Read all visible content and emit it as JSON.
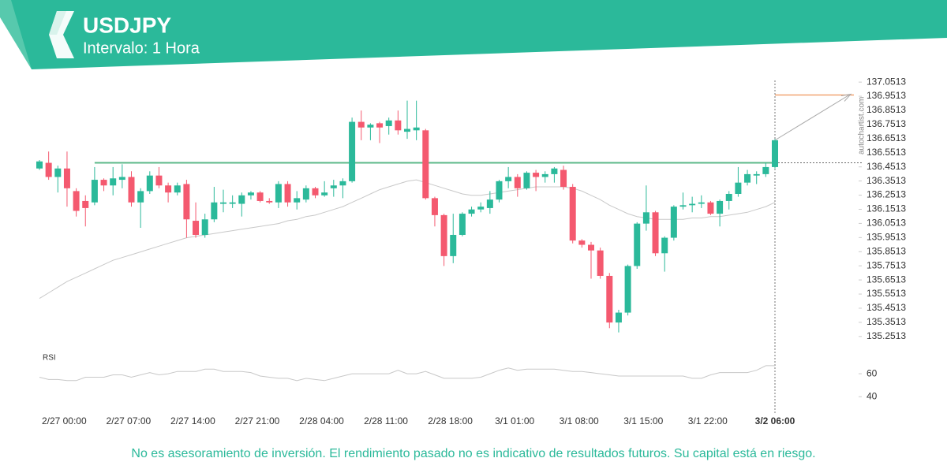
{
  "chart_data": {
    "type": "candlestick",
    "title": "USDJPY",
    "subtitle": "Intervalo: 1 Hora",
    "watermark": "autochartist.com",
    "disclaimer": "No es asesoramiento de inversión. El rendimiento pasado no es indicativo de resultados futuros. Su capital está en riesgo.",
    "categories": [
      null,
      null,
      "2/27 00:00",
      null,
      null,
      null,
      null,
      null,
      null,
      "2/27 07:00",
      null,
      null,
      null,
      null,
      null,
      null,
      "2/27 14:00",
      null,
      null,
      null,
      null,
      null,
      null,
      "2/27 21:00",
      null,
      null,
      null,
      null,
      null,
      null,
      "2/28 04:00",
      null,
      null,
      null,
      null,
      null,
      null,
      "2/28 11:00",
      null,
      null,
      null,
      null,
      null,
      null,
      "2/28 18:00",
      null,
      null,
      null,
      null,
      null,
      null,
      "3/1 01:00",
      null,
      null,
      null,
      null,
      null,
      null,
      "3/1 08:00",
      null,
      null,
      null,
      null,
      null,
      null,
      "3/1 15:00",
      null,
      null,
      null,
      null,
      null,
      null,
      "3/1 22:00",
      null,
      null,
      null,
      null,
      null,
      null,
      null,
      "3/2 06:00"
    ],
    "open": [
      136.44,
      136.48,
      136.38,
      136.44,
      136.28,
      136.21,
      136.2,
      136.36,
      136.32,
      136.36,
      136.38,
      136.2,
      136.28,
      136.39,
      136.32,
      136.27,
      136.33,
      136.07,
      135.97,
      136.08,
      136.19,
      136.19,
      136.19,
      136.25,
      136.27,
      136.21,
      136.2,
      136.33,
      136.2,
      136.22,
      136.3,
      136.25,
      136.3,
      136.32,
      136.35,
      136.77,
      136.73,
      136.76,
      136.74,
      136.78,
      136.7,
      136.71,
      136.71,
      136.23,
      136.11,
      135.82,
      135.97,
      136.12,
      136.15,
      136.16,
      136.22,
      136.35,
      136.38,
      136.3,
      136.41,
      136.38,
      136.4,
      136.43,
      136.31,
      135.93,
      135.9,
      135.86,
      135.68,
      135.35,
      135.42,
      135.75,
      136.05,
      136.13,
      135.84,
      135.95,
      136.17,
      136.18,
      136.19,
      136.2,
      136.12,
      136.21,
      136.26,
      136.34,
      136.39,
      136.4,
      136.45
    ],
    "high": [
      136.5,
      136.56,
      136.46,
      136.56,
      136.3,
      136.25,
      136.45,
      136.37,
      136.45,
      136.47,
      136.42,
      136.3,
      136.42,
      136.45,
      136.34,
      136.34,
      136.36,
      136.2,
      136.12,
      136.31,
      136.29,
      136.25,
      136.27,
      136.28,
      136.28,
      136.23,
      136.35,
      136.35,
      136.28,
      136.32,
      136.31,
      136.35,
      136.36,
      136.37,
      136.8,
      136.85,
      136.76,
      136.77,
      136.8,
      136.85,
      136.92,
      136.92,
      136.72,
      136.24,
      136.12,
      136.12,
      136.13,
      136.17,
      136.2,
      136.28,
      136.36,
      136.45,
      136.4,
      136.42,
      136.43,
      136.42,
      136.45,
      136.46,
      136.33,
      135.94,
      135.92,
      135.88,
      135.7,
      135.44,
      135.76,
      136.06,
      136.32,
      136.14,
      135.96,
      136.18,
      136.27,
      136.24,
      136.25,
      136.21,
      136.22,
      136.28,
      136.45,
      136.43,
      136.42,
      136.48,
      136.65
    ],
    "low": [
      136.43,
      136.36,
      136.27,
      136.17,
      136.1,
      136.03,
      136.18,
      136.28,
      136.25,
      136.3,
      136.17,
      136.02,
      136.26,
      136.3,
      136.2,
      136.25,
      135.95,
      135.95,
      135.95,
      136.06,
      136.13,
      136.16,
      136.1,
      136.22,
      136.2,
      136.19,
      136.16,
      136.17,
      136.15,
      136.2,
      136.23,
      136.24,
      136.24,
      136.23,
      136.34,
      136.64,
      136.64,
      136.62,
      136.68,
      136.68,
      136.65,
      136.64,
      136.22,
      136.03,
      135.75,
      135.77,
      135.96,
      136.1,
      136.13,
      136.12,
      136.2,
      136.3,
      136.24,
      136.29,
      136.28,
      136.34,
      136.34,
      136.29,
      135.91,
      135.88,
      135.66,
      135.66,
      135.31,
      135.28,
      135.4,
      135.73,
      136.0,
      135.82,
      135.71,
      135.93,
      136.15,
      136.13,
      136.16,
      136.11,
      136.03,
      136.15,
      136.24,
      136.32,
      136.33,
      136.38,
      136.44
    ],
    "close": [
      136.49,
      136.38,
      136.44,
      136.3,
      136.14,
      136.16,
      136.36,
      136.32,
      136.37,
      136.38,
      136.2,
      136.28,
      136.39,
      136.32,
      136.27,
      136.32,
      136.08,
      135.97,
      136.08,
      136.2,
      136.2,
      136.2,
      136.25,
      136.27,
      136.21,
      136.2,
      136.33,
      136.2,
      136.23,
      136.3,
      136.25,
      136.27,
      136.32,
      136.35,
      136.77,
      136.73,
      136.75,
      136.73,
      136.78,
      136.71,
      136.72,
      136.73,
      136.23,
      136.11,
      135.82,
      135.97,
      136.12,
      136.15,
      136.17,
      136.22,
      136.35,
      136.38,
      136.3,
      136.41,
      136.38,
      136.4,
      136.44,
      136.31,
      135.93,
      135.9,
      135.86,
      135.68,
      135.35,
      135.42,
      135.75,
      136.05,
      136.13,
      135.84,
      135.95,
      136.17,
      136.18,
      136.19,
      136.2,
      136.12,
      136.21,
      136.26,
      136.34,
      136.4,
      136.4,
      136.45,
      136.64
    ],
    "colors": {
      "up": "#2bb99a",
      "down": "#f4596f"
    },
    "moving_average": {
      "color": "#c8c8c8",
      "values": [
        135.52,
        135.56,
        135.6,
        135.64,
        135.67,
        135.7,
        135.73,
        135.76,
        135.79,
        135.81,
        135.83,
        135.85,
        135.87,
        135.89,
        135.91,
        135.93,
        135.95,
        135.96,
        135.97,
        135.98,
        135.99,
        136.0,
        136.01,
        136.02,
        136.03,
        136.04,
        136.05,
        136.07,
        136.08,
        136.1,
        136.11,
        136.13,
        136.15,
        136.17,
        136.2,
        136.23,
        136.26,
        136.29,
        136.31,
        136.33,
        136.35,
        136.36,
        136.34,
        136.32,
        136.3,
        136.28,
        136.26,
        136.25,
        136.25,
        136.26,
        136.27,
        136.28,
        136.29,
        136.3,
        136.31,
        136.31,
        136.31,
        136.31,
        136.3,
        136.28,
        136.25,
        136.22,
        136.18,
        136.15,
        136.12,
        136.1,
        136.09,
        136.08,
        136.08,
        136.08,
        136.08,
        136.09,
        136.09,
        136.1,
        136.1,
        136.11,
        136.12,
        136.13,
        136.15,
        136.17,
        136.2
      ]
    },
    "levels": {
      "support": 136.48,
      "support_color": "#5cb98a",
      "target": 136.96,
      "target_color": "#f0945a"
    },
    "ylim": [
      135.2,
      137.08
    ],
    "yticks": [
      137.0513,
      136.9513,
      136.8513,
      136.7513,
      136.6513,
      136.5513,
      136.4513,
      136.3513,
      136.2513,
      136.1513,
      136.0513,
      135.9513,
      135.8513,
      135.7513,
      135.6513,
      135.5513,
      135.4513,
      135.3513,
      135.2513
    ],
    "rsi": {
      "label": "RSI",
      "color": "#c8c8c8",
      "ylim": [
        25,
        80
      ],
      "yticks": [
        60,
        40
      ],
      "values": [
        57,
        55,
        55,
        54,
        54,
        57,
        57,
        57,
        59,
        59,
        57,
        59,
        61,
        59,
        60,
        62,
        62,
        62,
        64,
        64,
        62,
        62,
        62,
        61,
        58,
        57,
        56,
        56,
        54,
        56,
        55,
        54,
        56,
        58,
        60,
        60,
        60,
        60,
        60,
        63,
        60,
        60,
        62,
        59,
        56,
        56,
        56,
        56,
        57,
        60,
        63,
        65,
        63,
        64,
        64,
        64,
        64,
        63,
        62,
        62,
        61,
        60,
        59,
        58,
        58,
        58,
        58,
        58,
        58,
        58,
        58,
        56,
        56,
        59,
        61,
        61,
        61,
        61,
        63,
        67,
        67
      ]
    }
  }
}
